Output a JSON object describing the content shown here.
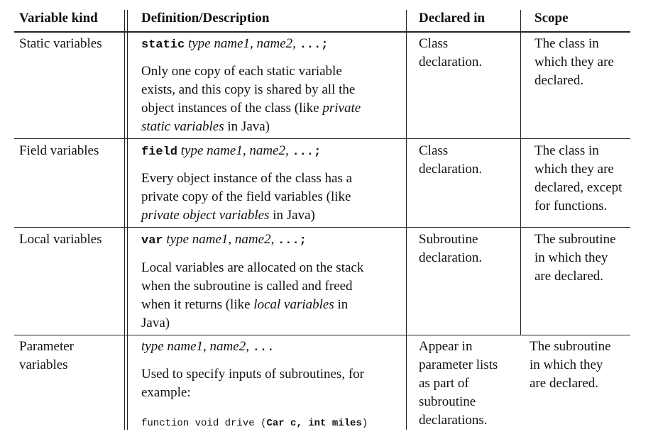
{
  "headers": {
    "kind": "Variable kind",
    "definition": "Definition/Description",
    "declared_in": "Declared in",
    "scope": "Scope"
  },
  "rows": [
    {
      "kind": [
        "Static variables"
      ],
      "syntax": {
        "keyword": "static",
        "type": "type",
        "names": "name1, name2,",
        "tail": "...;"
      },
      "description_parts": [
        "Only one copy of each static variable",
        "exists, and this copy is shared by all the",
        "object instances of the class (like ",
        "private",
        "static variables",
        " in Java)"
      ],
      "declared_in": [
        "Class",
        "declaration."
      ],
      "scope": [
        "The class in",
        "which they are",
        "declared."
      ]
    },
    {
      "kind": [
        "Field variables"
      ],
      "syntax": {
        "keyword": "field",
        "type": "type",
        "names": "name1, name2,",
        "tail": "...;"
      },
      "description_parts": [
        "Every object instance of the class has a",
        "private copy of the field variables (like",
        "private object variables",
        " in Java)"
      ],
      "declared_in": [
        "Class",
        "declaration."
      ],
      "scope": [
        "The class in",
        "which they are",
        "declared, except",
        "for functions."
      ]
    },
    {
      "kind": [
        "Local variables"
      ],
      "syntax": {
        "keyword": "var",
        "type": "type",
        "names": "name1, name2,",
        "tail": "...;"
      },
      "description_parts": [
        "Local variables are allocated on the stack",
        "when the subroutine is called and freed",
        "when it returns (like ",
        "local variables",
        " in",
        "Java)"
      ],
      "declared_in": [
        "Subroutine",
        "declaration."
      ],
      "scope": [
        "The subroutine",
        "in which they",
        "are declared."
      ]
    },
    {
      "kind": [
        "Parameter",
        "variables"
      ],
      "syntax": {
        "keyword": "",
        "type": "type",
        "names": "name1, name2,",
        "tail": "..."
      },
      "description_parts": [
        "Used to specify inputs of subroutines, for",
        "example:"
      ],
      "code": {
        "prefix": "function void drive (",
        "bold": "Car c, int miles",
        "suffix": ")"
      },
      "declared_in": [
        "Appear in",
        "parameter lists",
        "as part of",
        "subroutine",
        "declarations."
      ],
      "scope": [
        "The subroutine",
        "in which they",
        "are declared."
      ]
    }
  ]
}
